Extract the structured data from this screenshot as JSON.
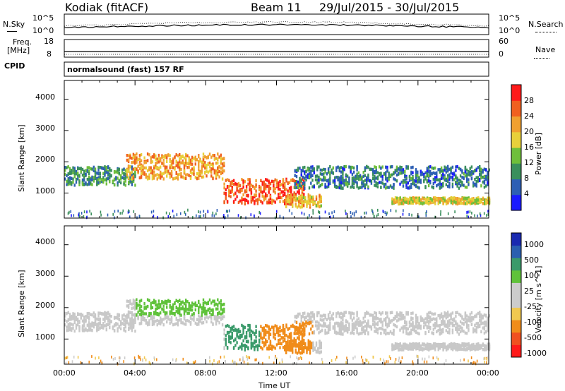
{
  "header": {
    "station": "Kodiak (fitACF)",
    "beam": "Beam 11",
    "date_range": "29/Jul/2015 - 30/Jul/2015"
  },
  "panels": {
    "noise": {
      "left_label": "N.Sky",
      "right_label": "N.Search",
      "left_ticks": [
        "10^5",
        "10^0"
      ],
      "right_ticks": [
        "10^5",
        "10^0"
      ]
    },
    "freq": {
      "left_label_1": "Freq.",
      "left_label_2": "[MHz]",
      "right_label": "Nave",
      "left_ticks": [
        "18",
        "8"
      ],
      "right_ticks": [
        "60",
        "0"
      ]
    },
    "cpid": {
      "label": "CPID",
      "text": "normalsound (fast) 157 RF"
    }
  },
  "colors": {
    "power_scale": [
      "#1a1aff",
      "#2d5fb4",
      "#3a8f5c",
      "#6fbf3a",
      "#e8d03a",
      "#f0a030",
      "#f06020",
      "#ff1a1a"
    ],
    "velocity_scale": [
      "#ff1a1a",
      "#f05020",
      "#f08c1a",
      "#f0c850",
      "#cccccc",
      "#cccccc",
      "#5fc23a",
      "#3a9a6a",
      "#2a5fb0",
      "#1a2ab0"
    ],
    "ground_scatter": "#c8c8c8"
  },
  "chart_data": [
    {
      "type": "heatmap",
      "title": "Power",
      "xlabel": "",
      "ylabel": "Slant Range [km]",
      "xlim": [
        0,
        24
      ],
      "ylim": [
        200,
        4600
      ],
      "y_ticks": [
        "1000",
        "2000",
        "3000",
        "4000"
      ],
      "colorbar": {
        "label": "Power [dB]",
        "range": [
          0,
          32
        ],
        "ticks": [
          "4",
          "8",
          "12",
          "16",
          "20",
          "24",
          "28"
        ]
      },
      "features": [
        {
          "from_hour": 0.0,
          "to_hour": 4.0,
          "range_km": [
            1300,
            1900
          ],
          "level_db": 10
        },
        {
          "from_hour": 3.5,
          "to_hour": 9.0,
          "range_km": [
            1500,
            2300
          ],
          "level_db": 22
        },
        {
          "from_hour": 9.0,
          "to_hour": 13.5,
          "range_km": [
            700,
            1500
          ],
          "level_db": 26
        },
        {
          "from_hour": 12.5,
          "to_hour": 14.5,
          "range_km": [
            600,
            1000
          ],
          "level_db": 20
        },
        {
          "from_hour": 13.0,
          "to_hour": 24.0,
          "range_km": [
            1200,
            1900
          ],
          "level_db": 8
        },
        {
          "from_hour": 18.5,
          "to_hour": 24.0,
          "range_km": [
            700,
            900
          ],
          "level_db": 18
        }
      ]
    },
    {
      "type": "heatmap",
      "title": "Velocity",
      "xlabel": "Time UT",
      "ylabel": "Slant Range [km]",
      "xlim": [
        0,
        24
      ],
      "ylim": [
        200,
        4600
      ],
      "x_ticks": [
        "00:00",
        "04:00",
        "08:00",
        "12:00",
        "16:00",
        "20:00",
        "00:00"
      ],
      "y_ticks": [
        "1000",
        "2000",
        "3000",
        "4000"
      ],
      "colorbar": {
        "label": "Velocity [m s^-1]",
        "ticks": [
          "1000",
          "500",
          "100",
          "25",
          "-25",
          "-100",
          "-500",
          "-1000"
        ]
      }
    }
  ]
}
